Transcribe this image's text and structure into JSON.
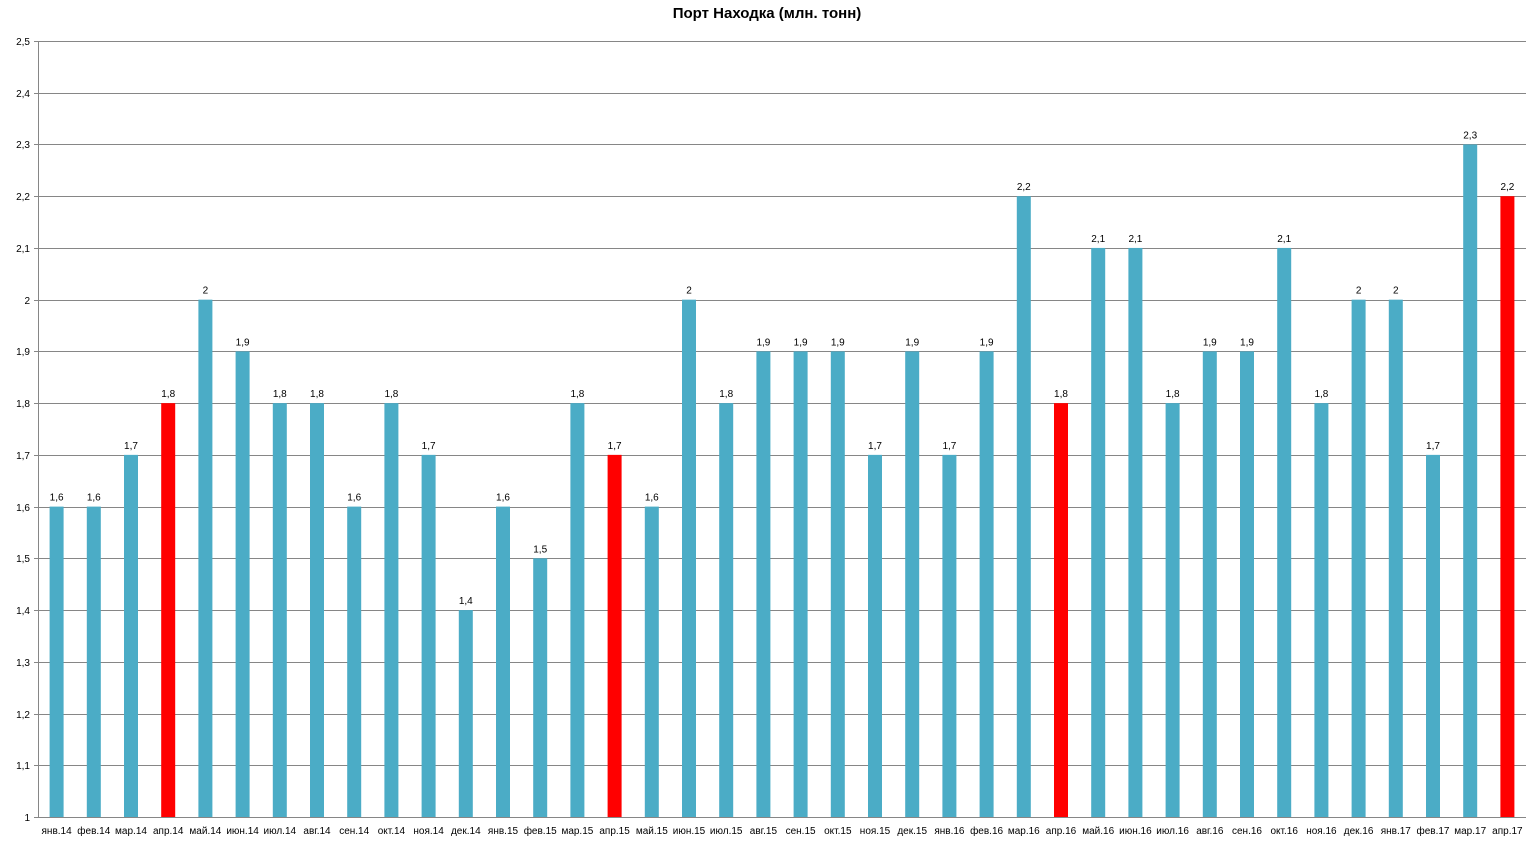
{
  "chart_data": {
    "type": "bar",
    "title": "Порт Находка (млн. тонн)",
    "xlabel": "",
    "ylabel": "",
    "ylim": [
      1,
      2.5
    ],
    "y_ticks": [
      "1",
      "1,1",
      "1,2",
      "1,3",
      "1,4",
      "1,5",
      "1,6",
      "1,7",
      "1,8",
      "1,9",
      "2",
      "2,1",
      "2,2",
      "2,3",
      "2,4",
      "2,5"
    ],
    "grid": true,
    "legend": "none",
    "colors": {
      "default": "#4BACC6",
      "highlight": "#FF0000",
      "grid": "#868686",
      "axis": "#868686"
    },
    "categories": [
      "янв.14",
      "фев.14",
      "мар.14",
      "апр.14",
      "май.14",
      "июн.14",
      "июл.14",
      "авг.14",
      "сен.14",
      "окт.14",
      "ноя.14",
      "дек.14",
      "янв.15",
      "фев.15",
      "мар.15",
      "апр.15",
      "май.15",
      "июн.15",
      "июл.15",
      "авг.15",
      "сен.15",
      "окт.15",
      "ноя.15",
      "дек.15",
      "янв.16",
      "фев.16",
      "мар.16",
      "апр.16",
      "май.16",
      "июн.16",
      "июл.16",
      "авг.16",
      "сен.16",
      "окт.16",
      "ноя.16",
      "дек.16",
      "янв.17",
      "фев.17",
      "мар.17",
      "апр.17"
    ],
    "values": [
      1.6,
      1.6,
      1.7,
      1.8,
      2,
      1.9,
      1.8,
      1.8,
      1.6,
      1.8,
      1.7,
      1.4,
      1.6,
      1.5,
      1.8,
      1.7,
      1.6,
      2,
      1.8,
      1.9,
      1.9,
      1.9,
      1.7,
      1.9,
      1.7,
      1.9,
      2.2,
      1.8,
      2.1,
      2.1,
      1.8,
      1.9,
      1.9,
      2.1,
      1.8,
      2,
      2,
      1.7,
      2.3,
      2.2
    ],
    "data_labels": [
      "1,6",
      "1,6",
      "1,7",
      "1,8",
      "2",
      "1,9",
      "1,8",
      "1,8",
      "1,6",
      "1,8",
      "1,7",
      "1,4",
      "1,6",
      "1,5",
      "1,8",
      "1,7",
      "1,6",
      "2",
      "1,8",
      "1,9",
      "1,9",
      "1,9",
      "1,7",
      "1,9",
      "1,7",
      "1,9",
      "2,2",
      "1,8",
      "2,1",
      "2,1",
      "1,8",
      "1,9",
      "1,9",
      "2,1",
      "1,8",
      "2",
      "2",
      "1,7",
      "2,3",
      "2,2"
    ],
    "highlighted": [
      3,
      15,
      27,
      39
    ]
  }
}
